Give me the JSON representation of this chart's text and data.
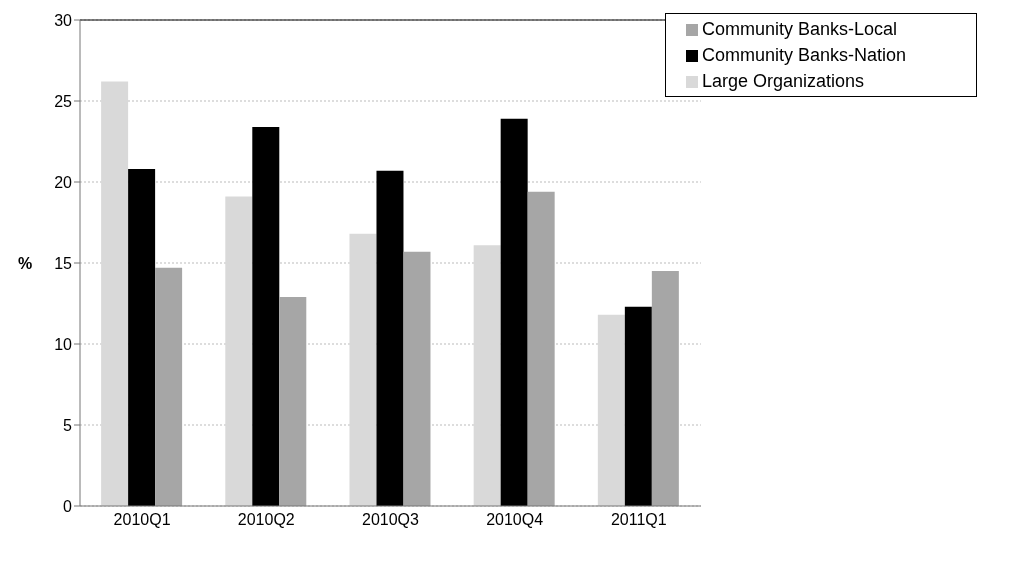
{
  "chart_data": {
    "type": "bar",
    "ylabel": "%",
    "categories": [
      "2010Q1",
      "2010Q2",
      "2010Q3",
      "2010Q4",
      "2011Q1"
    ],
    "series": [
      {
        "name": "Large Organizations",
        "color": "#d9d9d9",
        "values": [
          26.2,
          19.1,
          16.8,
          16.1,
          11.8
        ]
      },
      {
        "name": "Community Banks-Nation",
        "color": "#000000",
        "values": [
          20.8,
          23.4,
          20.7,
          23.9,
          12.3
        ]
      },
      {
        "name": "Community Banks-Local",
        "color": "#a6a6a6",
        "values": [
          14.7,
          12.9,
          15.7,
          19.4,
          14.5
        ]
      }
    ],
    "ylim": [
      0,
      30
    ],
    "yticks": [
      0,
      5,
      10,
      15,
      20,
      25,
      30
    ],
    "grid": "y",
    "legend": "top right"
  }
}
